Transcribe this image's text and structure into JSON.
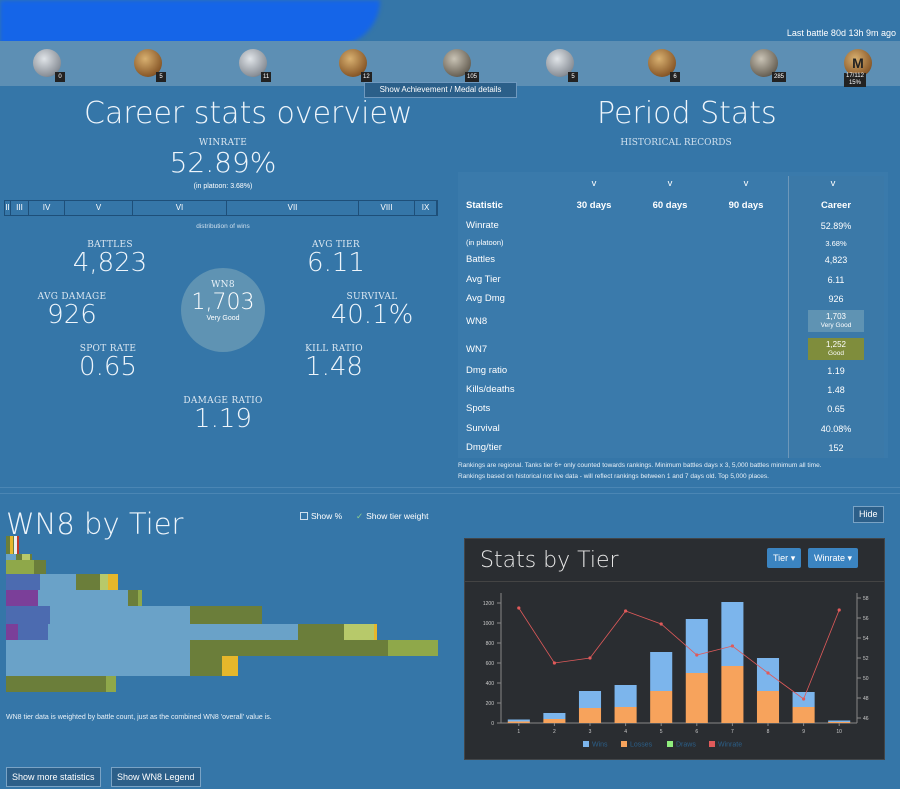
{
  "header": {
    "last_battle": "Last battle 80d 13h 9m ago"
  },
  "medals": [
    {
      "name": "tank-medal-1",
      "count": "0",
      "style": "silver"
    },
    {
      "name": "tank-medal-2",
      "count": "5",
      "style": "gold"
    },
    {
      "name": "tank-medal-3",
      "count": "11",
      "style": "silver"
    },
    {
      "name": "tank-medal-4",
      "count": "12",
      "style": "gold"
    },
    {
      "name": "tank-medal-5",
      "count": "105",
      "style": "dark"
    },
    {
      "name": "tank-medal-6",
      "count": "5",
      "style": "silver"
    },
    {
      "name": "star-medal-7",
      "count": "6",
      "style": "gold"
    },
    {
      "name": "tank-medal-8",
      "count": "285",
      "style": "dark"
    },
    {
      "name": "mastery-badge",
      "count": "17/112\n15%",
      "style": "gold",
      "glyph": "M"
    }
  ],
  "ach_button": "Show Achievement / Medal details",
  "career": {
    "title": "Career stats overview",
    "winrate_label": "WINRATE",
    "winrate": "52.89%",
    "platoon": "(in platoon: 3.68%)",
    "dist_caption": "distribution of wins",
    "dist": [
      {
        "label": "II",
        "w": 6
      },
      {
        "label": "III",
        "w": 18
      },
      {
        "label": "IV",
        "w": 36
      },
      {
        "label": "V",
        "w": 68
      },
      {
        "label": "VI",
        "w": 94
      },
      {
        "label": "VII",
        "w": 132
      },
      {
        "label": "VIII",
        "w": 56
      },
      {
        "label": "IX",
        "w": 22
      }
    ],
    "battles_label": "BATTLES",
    "battles": "4,823",
    "avgtier_label": "AVG TIER",
    "avgtier": "6.11",
    "avgdmg_label": "AVG DAMAGE",
    "avgdmg": "926",
    "survival_label": "SURVIVAL",
    "survival": "40.1%",
    "spot_label": "SPOT RATE",
    "spot": "0.65",
    "kill_label": "KILL RATIO",
    "kill": "1.48",
    "dmgratio_label": "DAMAGE RATIO",
    "dmgratio": "1.19",
    "wn8_label": "WN8",
    "wn8": "1,703",
    "wn8_rating": "Very Good"
  },
  "period": {
    "title": "Period Stats",
    "subtitle": "HISTORICAL RECORDS",
    "chevron": "v",
    "headers": [
      "Statistic",
      "30 days",
      "60 days",
      "90 days",
      "Career"
    ],
    "rows": [
      {
        "label": "Winrate",
        "career": "52.89%"
      },
      {
        "label": "(in platoon)",
        "career": "3.68%",
        "small": true
      },
      {
        "label": "Battles",
        "career": "4,823"
      },
      {
        "label": "Avg Tier",
        "career": "6.11"
      },
      {
        "label": "Avg Dmg",
        "career": "926"
      },
      {
        "label": "WN8",
        "career": "1,703",
        "rating": "Very Good",
        "color": "#5f93b3"
      },
      {
        "label": "WN7",
        "career": "1,252",
        "rating": "Good",
        "color": "#7f8d3c"
      },
      {
        "label": "Dmg ratio",
        "career": "1.19"
      },
      {
        "label": "Kills/deaths",
        "career": "1.48"
      },
      {
        "label": "Spots",
        "career": "0.65"
      },
      {
        "label": "Survival",
        "career": "40.08%"
      },
      {
        "label": "Dmg/tier",
        "career": "152"
      }
    ],
    "note1": "Rankings are regional. Tanks tier 6+ only counted towards rankings. Minimum battles days x 3, 5,000 battles minimum all time.",
    "note2": "Rankings based on historical not live data - will reflect rankings between 1 and 7 days old. Top 5,000 places."
  },
  "wn8tier": {
    "title": "WN8 by Tier",
    "show_pct": "Show %",
    "show_weight": "Show tier weight",
    "hide": "Hide",
    "note": "WN8 tier data is weighted by battle count, just as the combined WN8 'overall' value is."
  },
  "buttons": {
    "more_stats": "Show more statistics",
    "legend": "Show WN8 Legend"
  },
  "colors": {
    "bg": "#3576a8",
    "good": "#7f8d3c",
    "verygood": "#5f93b3",
    "great": "#4c6bb0",
    "unicum": "#7b3f99",
    "avg": "#e6b72b",
    "bad": "#c0392b",
    "olive": "#6b7e3a"
  },
  "chart_data": {
    "type": "bar",
    "title": "Stats by Tier",
    "tier_button": "Tier",
    "winrate_button": "Winrate",
    "categories": [
      "1",
      "2",
      "3",
      "4",
      "5",
      "6",
      "7",
      "8",
      "9",
      "10"
    ],
    "series": [
      {
        "name": "Wins",
        "color": "#7cb5ec",
        "values": [
          20,
          60,
          170,
          220,
          390,
          540,
          640,
          330,
          150,
          15
        ]
      },
      {
        "name": "Losses",
        "color": "#f7a35c",
        "values": [
          15,
          40,
          150,
          160,
          320,
          500,
          570,
          320,
          160,
          10
        ]
      },
      {
        "name": "Draws",
        "color": "#90ed7d",
        "values": [
          0,
          0,
          2,
          2,
          4,
          6,
          8,
          4,
          2,
          0
        ]
      },
      {
        "name": "Winrate",
        "color": "#e05a5a",
        "axis": "right",
        "values": [
          57,
          51.5,
          52,
          56.7,
          55.4,
          52.3,
          53.2,
          50.5,
          47.9,
          56.8
        ]
      }
    ],
    "y_left_ticks": [
      "0",
      "200",
      "400",
      "600",
      "800",
      "1000",
      "1200"
    ],
    "y_right_ticks": [
      "46",
      "48",
      "50",
      "52",
      "54",
      "56",
      "58"
    ],
    "ylim": [
      0,
      1300
    ],
    "y2lim": [
      45.5,
      58.5
    ]
  }
}
